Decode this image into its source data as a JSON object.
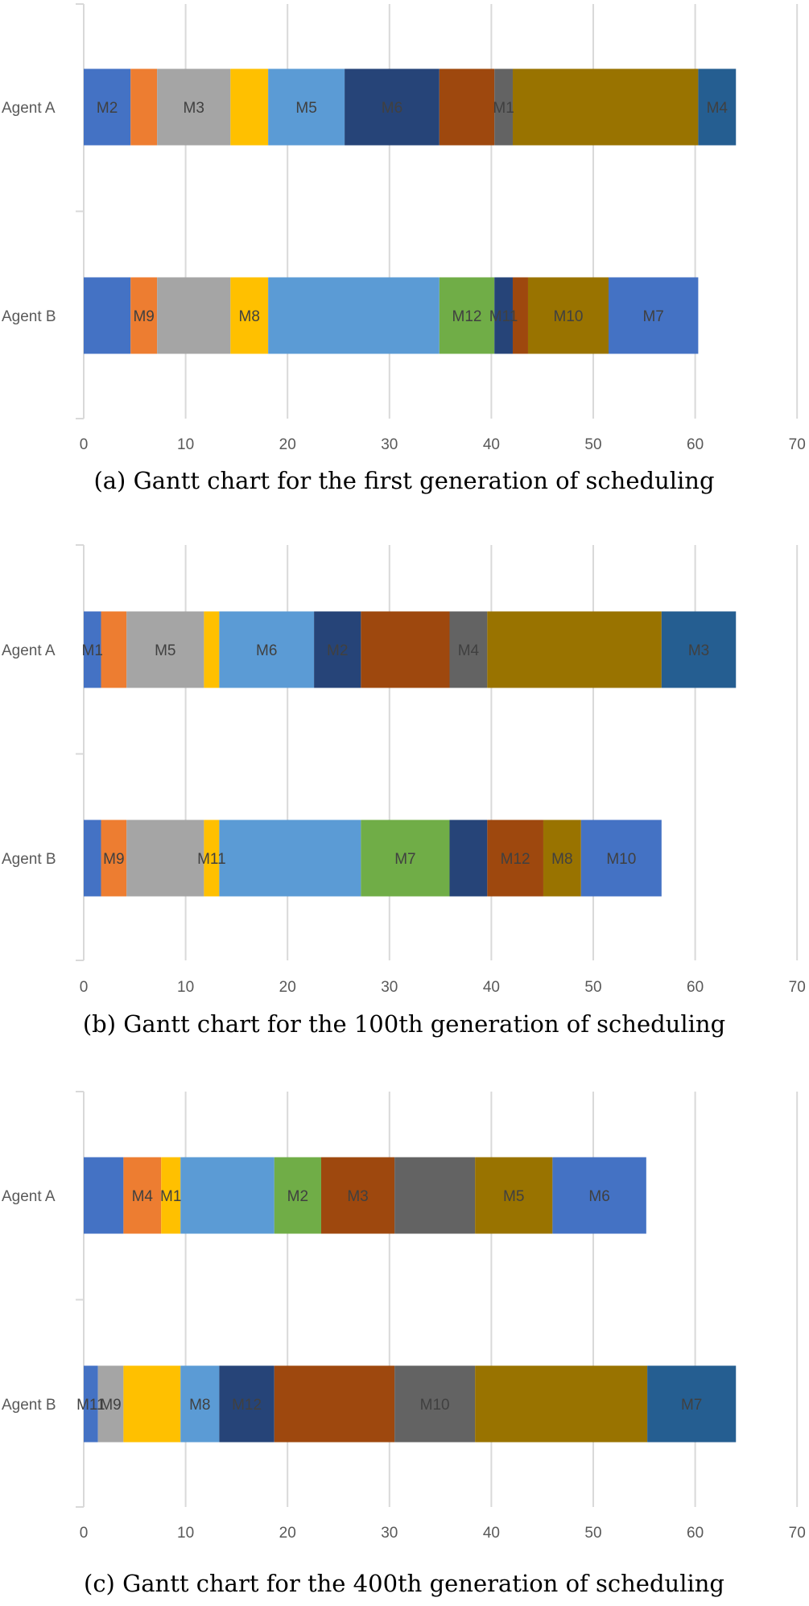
{
  "chart_data": [
    {
      "type": "bar",
      "orientation": "horizontal-stacked-gantt",
      "caption": "(a) Gantt chart for the first generation of scheduling",
      "xlim": [
        0,
        70
      ],
      "xticks": [
        "0",
        "10",
        "20",
        "30",
        "40",
        "50",
        "60",
        "70"
      ],
      "grid": true,
      "rows": [
        {
          "name": "Agent A",
          "segments": [
            {
              "start": 0,
              "end": 4.6,
              "color": "#4472C4",
              "label": "M2"
            },
            {
              "start": 4.6,
              "end": 7.2,
              "color": "#ED7D31",
              "label": ""
            },
            {
              "start": 7.2,
              "end": 14.4,
              "color": "#A5A5A5",
              "label": "M3"
            },
            {
              "start": 14.4,
              "end": 18.1,
              "color": "#FFC000",
              "label": ""
            },
            {
              "start": 18.1,
              "end": 25.6,
              "color": "#5B9BD5",
              "label": "M5"
            },
            {
              "start": 25.6,
              "end": 34.9,
              "color": "#264478",
              "label": "M6"
            },
            {
              "start": 34.9,
              "end": 40.3,
              "color": "#9E480E",
              "label": ""
            },
            {
              "start": 40.3,
              "end": 42.1,
              "color": "#636363",
              "label": "M1"
            },
            {
              "start": 42.1,
              "end": 60.3,
              "color": "#997300",
              "label": ""
            },
            {
              "start": 60.3,
              "end": 64.0,
              "color": "#255E91",
              "label": "M4"
            }
          ]
        },
        {
          "name": "Agent B",
          "segments": [
            {
              "start": 0,
              "end": 4.6,
              "color": "#4472C4",
              "label": ""
            },
            {
              "start": 4.6,
              "end": 7.2,
              "color": "#ED7D31",
              "label": "M9"
            },
            {
              "start": 7.2,
              "end": 14.4,
              "color": "#A5A5A5",
              "label": ""
            },
            {
              "start": 14.4,
              "end": 18.1,
              "color": "#FFC000",
              "label": "M8"
            },
            {
              "start": 18.1,
              "end": 34.9,
              "color": "#5B9BD5",
              "label": ""
            },
            {
              "start": 34.9,
              "end": 40.3,
              "color": "#70AD47",
              "label": "M12"
            },
            {
              "start": 40.3,
              "end": 42.1,
              "color": "#264478",
              "label": "M11"
            },
            {
              "start": 42.1,
              "end": 43.6,
              "color": "#9E480E",
              "label": ""
            },
            {
              "start": 43.6,
              "end": 51.5,
              "color": "#997300",
              "label": "M10"
            },
            {
              "start": 51.5,
              "end": 60.3,
              "color": "#4472C4",
              "label": "M7"
            }
          ]
        }
      ]
    },
    {
      "type": "bar",
      "orientation": "horizontal-stacked-gantt",
      "caption": "(b) Gantt chart for the 100th generation of scheduling",
      "xlim": [
        0,
        70
      ],
      "xticks": [
        "0",
        "10",
        "20",
        "30",
        "40",
        "50",
        "60",
        "70"
      ],
      "grid": true,
      "rows": [
        {
          "name": "Agent A",
          "segments": [
            {
              "start": 0,
              "end": 1.7,
              "color": "#4472C4",
              "label": "M1"
            },
            {
              "start": 1.7,
              "end": 4.2,
              "color": "#ED7D31",
              "label": ""
            },
            {
              "start": 4.2,
              "end": 11.8,
              "color": "#A5A5A5",
              "label": "M5"
            },
            {
              "start": 11.8,
              "end": 13.3,
              "color": "#FFC000",
              "label": ""
            },
            {
              "start": 13.3,
              "end": 22.6,
              "color": "#5B9BD5",
              "label": "M6"
            },
            {
              "start": 22.6,
              "end": 27.2,
              "color": "#264478",
              "label": "M2"
            },
            {
              "start": 27.2,
              "end": 35.9,
              "color": "#9E480E",
              "label": ""
            },
            {
              "start": 35.9,
              "end": 39.6,
              "color": "#636363",
              "label": "M4"
            },
            {
              "start": 39.6,
              "end": 56.7,
              "color": "#997300",
              "label": ""
            },
            {
              "start": 56.7,
              "end": 64.0,
              "color": "#255E91",
              "label": "M3"
            }
          ]
        },
        {
          "name": "Agent B",
          "segments": [
            {
              "start": 0,
              "end": 1.7,
              "color": "#4472C4",
              "label": ""
            },
            {
              "start": 1.7,
              "end": 4.2,
              "color": "#ED7D31",
              "label": "M9"
            },
            {
              "start": 4.2,
              "end": 11.8,
              "color": "#A5A5A5",
              "label": ""
            },
            {
              "start": 11.8,
              "end": 13.3,
              "color": "#FFC000",
              "label": "M11"
            },
            {
              "start": 13.3,
              "end": 27.2,
              "color": "#5B9BD5",
              "label": ""
            },
            {
              "start": 27.2,
              "end": 35.9,
              "color": "#70AD47",
              "label": "M7"
            },
            {
              "start": 35.9,
              "end": 39.6,
              "color": "#264478",
              "label": ""
            },
            {
              "start": 39.6,
              "end": 45.1,
              "color": "#9E480E",
              "label": "M12"
            },
            {
              "start": 45.1,
              "end": 48.8,
              "color": "#997300",
              "label": "M8"
            },
            {
              "start": 48.8,
              "end": 56.7,
              "color": "#4472C4",
              "label": "M10"
            }
          ]
        }
      ]
    },
    {
      "type": "bar",
      "orientation": "horizontal-stacked-gantt",
      "caption": "(c) Gantt chart for the 400th generation of scheduling",
      "xlim": [
        0,
        70
      ],
      "xticks": [
        "0",
        "10",
        "20",
        "30",
        "40",
        "50",
        "60",
        "70"
      ],
      "grid": true,
      "rows": [
        {
          "name": "Agent A",
          "segments": [
            {
              "start": 0,
              "end": 3.9,
              "color": "#4472C4",
              "label": ""
            },
            {
              "start": 3.9,
              "end": 7.6,
              "color": "#ED7D31",
              "label": "M4"
            },
            {
              "start": 7.6,
              "end": 9.5,
              "color": "#FFC000",
              "label": "M1"
            },
            {
              "start": 9.5,
              "end": 18.7,
              "color": "#5B9BD5",
              "label": ""
            },
            {
              "start": 18.7,
              "end": 23.3,
              "color": "#70AD47",
              "label": "M2"
            },
            {
              "start": 23.3,
              "end": 30.5,
              "color": "#9E480E",
              "label": "M3"
            },
            {
              "start": 30.5,
              "end": 38.4,
              "color": "#636363",
              "label": ""
            },
            {
              "start": 38.4,
              "end": 46.0,
              "color": "#997300",
              "label": "M5"
            },
            {
              "start": 46.0,
              "end": 55.2,
              "color": "#4472C4",
              "label": "M6"
            }
          ]
        },
        {
          "name": "Agent B",
          "segments": [
            {
              "start": 0,
              "end": 1.4,
              "color": "#4472C4",
              "label": "M11"
            },
            {
              "start": 1.4,
              "end": 3.9,
              "color": "#A5A5A5",
              "label": "M9"
            },
            {
              "start": 3.9,
              "end": 9.5,
              "color": "#FFC000",
              "label": ""
            },
            {
              "start": 9.5,
              "end": 13.3,
              "color": "#5B9BD5",
              "label": "M8"
            },
            {
              "start": 13.3,
              "end": 18.7,
              "color": "#264478",
              "label": "M12"
            },
            {
              "start": 18.7,
              "end": 30.5,
              "color": "#9E480E",
              "label": ""
            },
            {
              "start": 30.5,
              "end": 38.4,
              "color": "#636363",
              "label": "M10"
            },
            {
              "start": 38.4,
              "end": 55.3,
              "color": "#997300",
              "label": ""
            },
            {
              "start": 55.3,
              "end": 64.0,
              "color": "#255E91",
              "label": "M7"
            }
          ]
        }
      ]
    }
  ]
}
